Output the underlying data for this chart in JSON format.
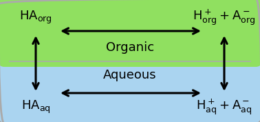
{
  "fig_width": 3.78,
  "fig_height": 1.77,
  "dpi": 100,
  "bg_color": "#ffffff",
  "organic_color": "#90e060",
  "aqueous_color": "#aad4f0",
  "border_color": "#aaaaaa",
  "text_color": "#000000",
  "arrow_color": "#000000",
  "label_organic": "Organic",
  "label_aqueous": "Aqueous",
  "font_size_phase": 13,
  "font_size_species": 12,
  "arrow_lw": 2.2,
  "arrow_mutation_scale": 15
}
